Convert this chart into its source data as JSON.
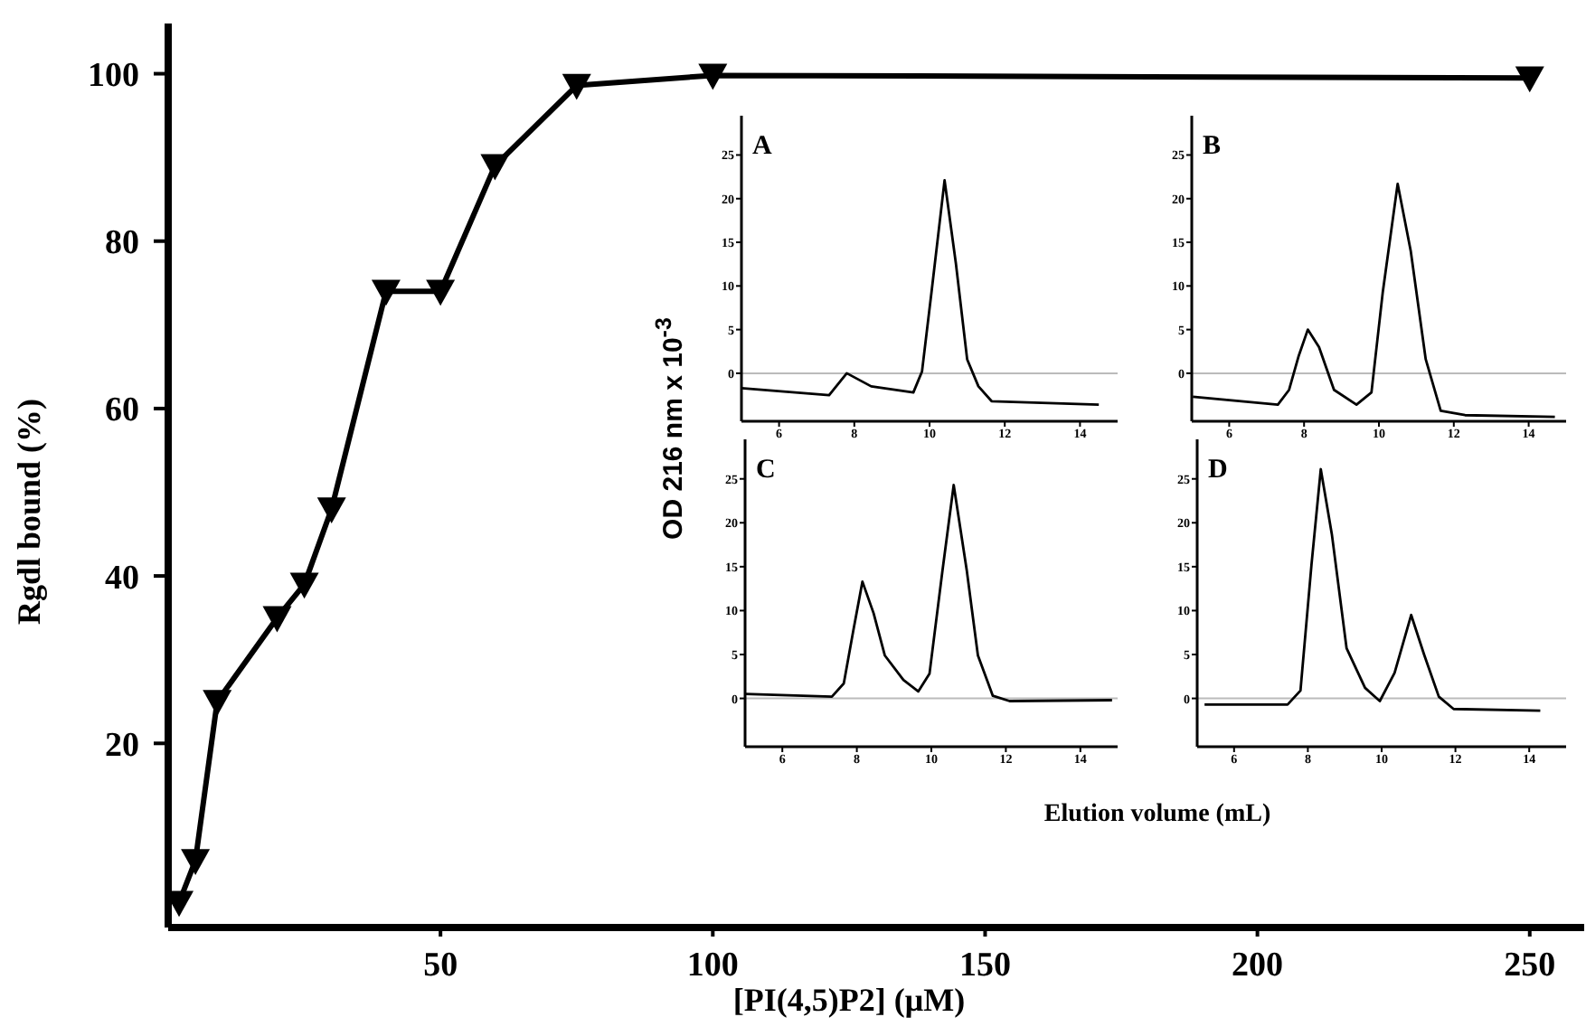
{
  "chart_data": [
    {
      "type": "line",
      "xlabel": "[PI(4,5)P2] (μM)",
      "ylabel": "Rgdl bound (%)",
      "xlim": [
        0,
        260
      ],
      "xticks": [
        50,
        100,
        150,
        200,
        250
      ],
      "ylim": [
        -2,
        106
      ],
      "yticks": [
        20,
        40,
        60,
        80,
        100
      ],
      "marker": "triangle",
      "x": [
        2,
        5,
        9,
        20,
        25,
        30,
        40,
        50,
        60,
        75,
        100,
        250
      ],
      "series": [
        {
          "color": "#000000",
          "values": [
            1,
            6,
            25,
            35,
            39,
            48,
            74,
            74,
            89,
            98.6,
            99.8,
            99.5
          ]
        }
      ]
    },
    {
      "type": "line",
      "title": "A",
      "ylabel": "OD 216 nm x 10$^{-3}$",
      "xlim": [
        5,
        15
      ],
      "xticks": [
        6,
        8,
        10,
        12,
        14
      ],
      "ylim": [
        -5.5,
        29.5
      ],
      "yticks": [
        0,
        5,
        10,
        15,
        20,
        25
      ],
      "ref_lines": [
        {
          "axis": "y",
          "value": 0,
          "color": "#bbbbbb"
        }
      ],
      "x": [
        5.0,
        7.33,
        7.8,
        8.45,
        9.57,
        9.8,
        10.05,
        10.4,
        10.7,
        11.0,
        11.3,
        11.65,
        14.5
      ],
      "series": [
        {
          "color": "#000000",
          "values": [
            -1.7,
            -2.5,
            0,
            -1.5,
            -2.2,
            0.2,
            9.2,
            22.1,
            12.6,
            1.6,
            -1.5,
            -3.2,
            -3.6
          ]
        }
      ]
    },
    {
      "type": "line",
      "title": "B",
      "xlim": [
        5,
        15
      ],
      "xticks": [
        6,
        8,
        10,
        12,
        14
      ],
      "ylim": [
        -5.5,
        29.5
      ],
      "yticks": [
        0,
        5,
        10,
        15,
        20,
        25
      ],
      "ref_lines": [
        {
          "axis": "y",
          "value": 0,
          "color": "#bbbbbb"
        }
      ],
      "x": [
        5.03,
        7.3,
        7.6,
        7.85,
        8.1,
        8.4,
        8.8,
        9.4,
        9.8,
        10.1,
        10.5,
        10.85,
        11.25,
        11.65,
        12.3,
        14.7
      ],
      "series": [
        {
          "color": "#000000",
          "values": [
            -2.7,
            -3.6,
            -1.9,
            1.9,
            5.0,
            3.0,
            -1.9,
            -3.6,
            -2.2,
            9.2,
            21.7,
            14,
            1.6,
            -4.3,
            -4.8,
            -5
          ]
        }
      ]
    },
    {
      "type": "line",
      "title": "C",
      "xlabel": "Elution volume (mL)",
      "xlim": [
        5,
        15
      ],
      "xticks": [
        6,
        8,
        10,
        12,
        14
      ],
      "ylim": [
        -5.5,
        29.5
      ],
      "yticks": [
        0,
        5,
        10,
        15,
        20,
        25
      ],
      "ref_lines": [
        {
          "axis": "y",
          "value": 0,
          "color": "#bbbbbb"
        }
      ],
      "x": [
        5.0,
        7.33,
        7.65,
        7.9,
        8.15,
        8.45,
        8.75,
        9.25,
        9.65,
        9.95,
        10.3,
        10.6,
        10.95,
        11.25,
        11.65,
        12.1,
        14.85
      ],
      "series": [
        {
          "color": "#000000",
          "values": [
            0.5,
            0.2,
            1.7,
            7.6,
            13.3,
            9.7,
            4.9,
            2.1,
            0.8,
            2.8,
            14.6,
            24.3,
            14.6,
            4.9,
            0.3,
            -0.3,
            -0.2
          ]
        }
      ]
    },
    {
      "type": "line",
      "title": "D",
      "xlim": [
        5,
        15
      ],
      "xticks": [
        6,
        8,
        10,
        12,
        14
      ],
      "ylim": [
        -5.5,
        29.5
      ],
      "yticks": [
        0,
        5,
        10,
        15,
        20,
        25
      ],
      "ref_lines": [
        {
          "axis": "y",
          "value": 0,
          "color": "#bbbbbb"
        }
      ],
      "x": [
        5.2,
        7.45,
        7.8,
        8.1,
        8.35,
        8.65,
        9.05,
        9.55,
        9.95,
        10.35,
        10.8,
        11.15,
        11.55,
        11.95,
        14.3
      ],
      "series": [
        {
          "color": "#000000",
          "values": [
            -0.7,
            -0.7,
            0.9,
            15.3,
            26.1,
            18.7,
            5.7,
            1.2,
            -0.3,
            2.9,
            9.5,
            5,
            0.2,
            -1.2,
            -1.4
          ]
        }
      ]
    }
  ]
}
